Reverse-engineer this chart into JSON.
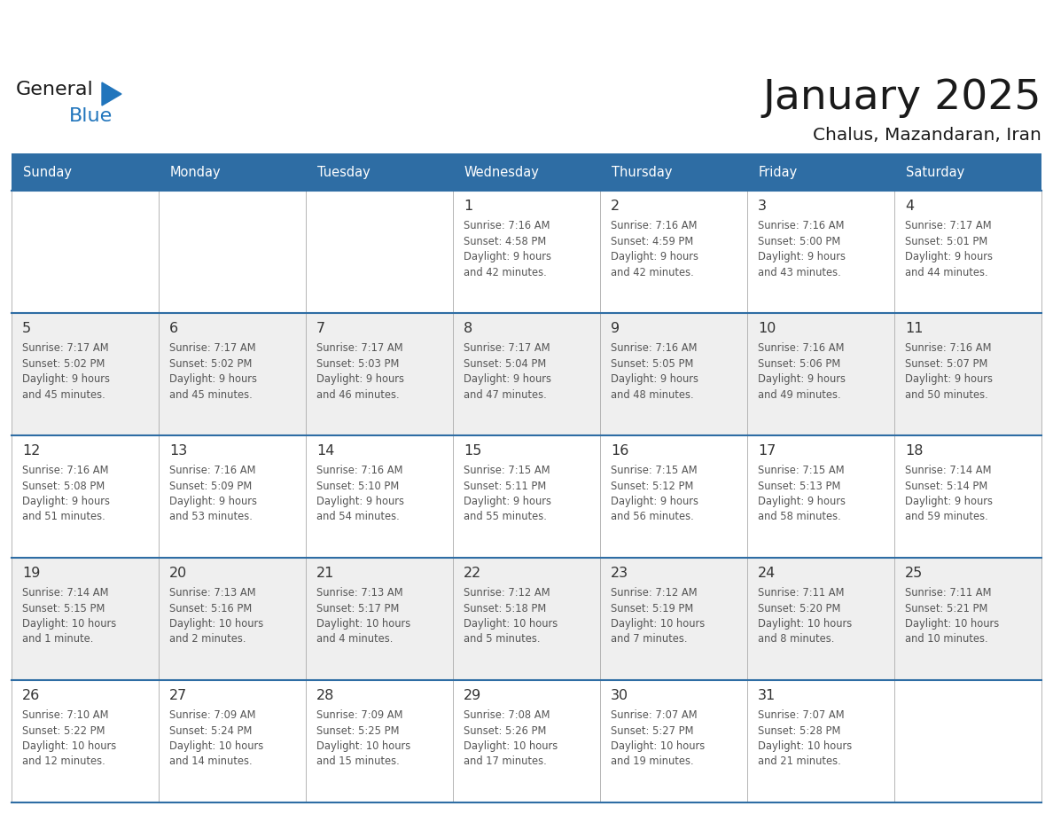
{
  "title": "January 2025",
  "subtitle": "Chalus, Mazandaran, Iran",
  "days_of_week": [
    "Sunday",
    "Monday",
    "Tuesday",
    "Wednesday",
    "Thursday",
    "Friday",
    "Saturday"
  ],
  "header_bg": "#2E6DA4",
  "header_text": "#FFFFFF",
  "row_bg_even": "#FFFFFF",
  "row_bg_odd": "#EFEFEF",
  "separator_color": "#2E6DA4",
  "cell_border_color": "#AAAAAA",
  "day_num_color": "#333333",
  "info_text_color": "#555555",
  "title_color": "#1A1A1A",
  "logo_general_color": "#1A1A1A",
  "logo_blue_color": "#2175BC",
  "calendar_data": [
    [
      {
        "day": null,
        "sunrise": null,
        "sunset": null,
        "daylight": null
      },
      {
        "day": null,
        "sunrise": null,
        "sunset": null,
        "daylight": null
      },
      {
        "day": null,
        "sunrise": null,
        "sunset": null,
        "daylight": null
      },
      {
        "day": 1,
        "sunrise": "7:16 AM",
        "sunset": "4:58 PM",
        "daylight": "9 hours\nand 42 minutes."
      },
      {
        "day": 2,
        "sunrise": "7:16 AM",
        "sunset": "4:59 PM",
        "daylight": "9 hours\nand 42 minutes."
      },
      {
        "day": 3,
        "sunrise": "7:16 AM",
        "sunset": "5:00 PM",
        "daylight": "9 hours\nand 43 minutes."
      },
      {
        "day": 4,
        "sunrise": "7:17 AM",
        "sunset": "5:01 PM",
        "daylight": "9 hours\nand 44 minutes."
      }
    ],
    [
      {
        "day": 5,
        "sunrise": "7:17 AM",
        "sunset": "5:02 PM",
        "daylight": "9 hours\nand 45 minutes."
      },
      {
        "day": 6,
        "sunrise": "7:17 AM",
        "sunset": "5:02 PM",
        "daylight": "9 hours\nand 45 minutes."
      },
      {
        "day": 7,
        "sunrise": "7:17 AM",
        "sunset": "5:03 PM",
        "daylight": "9 hours\nand 46 minutes."
      },
      {
        "day": 8,
        "sunrise": "7:17 AM",
        "sunset": "5:04 PM",
        "daylight": "9 hours\nand 47 minutes."
      },
      {
        "day": 9,
        "sunrise": "7:16 AM",
        "sunset": "5:05 PM",
        "daylight": "9 hours\nand 48 minutes."
      },
      {
        "day": 10,
        "sunrise": "7:16 AM",
        "sunset": "5:06 PM",
        "daylight": "9 hours\nand 49 minutes."
      },
      {
        "day": 11,
        "sunrise": "7:16 AM",
        "sunset": "5:07 PM",
        "daylight": "9 hours\nand 50 minutes."
      }
    ],
    [
      {
        "day": 12,
        "sunrise": "7:16 AM",
        "sunset": "5:08 PM",
        "daylight": "9 hours\nand 51 minutes."
      },
      {
        "day": 13,
        "sunrise": "7:16 AM",
        "sunset": "5:09 PM",
        "daylight": "9 hours\nand 53 minutes."
      },
      {
        "day": 14,
        "sunrise": "7:16 AM",
        "sunset": "5:10 PM",
        "daylight": "9 hours\nand 54 minutes."
      },
      {
        "day": 15,
        "sunrise": "7:15 AM",
        "sunset": "5:11 PM",
        "daylight": "9 hours\nand 55 minutes."
      },
      {
        "day": 16,
        "sunrise": "7:15 AM",
        "sunset": "5:12 PM",
        "daylight": "9 hours\nand 56 minutes."
      },
      {
        "day": 17,
        "sunrise": "7:15 AM",
        "sunset": "5:13 PM",
        "daylight": "9 hours\nand 58 minutes."
      },
      {
        "day": 18,
        "sunrise": "7:14 AM",
        "sunset": "5:14 PM",
        "daylight": "9 hours\nand 59 minutes."
      }
    ],
    [
      {
        "day": 19,
        "sunrise": "7:14 AM",
        "sunset": "5:15 PM",
        "daylight": "10 hours\nand 1 minute."
      },
      {
        "day": 20,
        "sunrise": "7:13 AM",
        "sunset": "5:16 PM",
        "daylight": "10 hours\nand 2 minutes."
      },
      {
        "day": 21,
        "sunrise": "7:13 AM",
        "sunset": "5:17 PM",
        "daylight": "10 hours\nand 4 minutes."
      },
      {
        "day": 22,
        "sunrise": "7:12 AM",
        "sunset": "5:18 PM",
        "daylight": "10 hours\nand 5 minutes."
      },
      {
        "day": 23,
        "sunrise": "7:12 AM",
        "sunset": "5:19 PM",
        "daylight": "10 hours\nand 7 minutes."
      },
      {
        "day": 24,
        "sunrise": "7:11 AM",
        "sunset": "5:20 PM",
        "daylight": "10 hours\nand 8 minutes."
      },
      {
        "day": 25,
        "sunrise": "7:11 AM",
        "sunset": "5:21 PM",
        "daylight": "10 hours\nand 10 minutes."
      }
    ],
    [
      {
        "day": 26,
        "sunrise": "7:10 AM",
        "sunset": "5:22 PM",
        "daylight": "10 hours\nand 12 minutes."
      },
      {
        "day": 27,
        "sunrise": "7:09 AM",
        "sunset": "5:24 PM",
        "daylight": "10 hours\nand 14 minutes."
      },
      {
        "day": 28,
        "sunrise": "7:09 AM",
        "sunset": "5:25 PM",
        "daylight": "10 hours\nand 15 minutes."
      },
      {
        "day": 29,
        "sunrise": "7:08 AM",
        "sunset": "5:26 PM",
        "daylight": "10 hours\nand 17 minutes."
      },
      {
        "day": 30,
        "sunrise": "7:07 AM",
        "sunset": "5:27 PM",
        "daylight": "10 hours\nand 19 minutes."
      },
      {
        "day": 31,
        "sunrise": "7:07 AM",
        "sunset": "5:28 PM",
        "daylight": "10 hours\nand 21 minutes."
      },
      {
        "day": null,
        "sunrise": null,
        "sunset": null,
        "daylight": null
      }
    ]
  ]
}
